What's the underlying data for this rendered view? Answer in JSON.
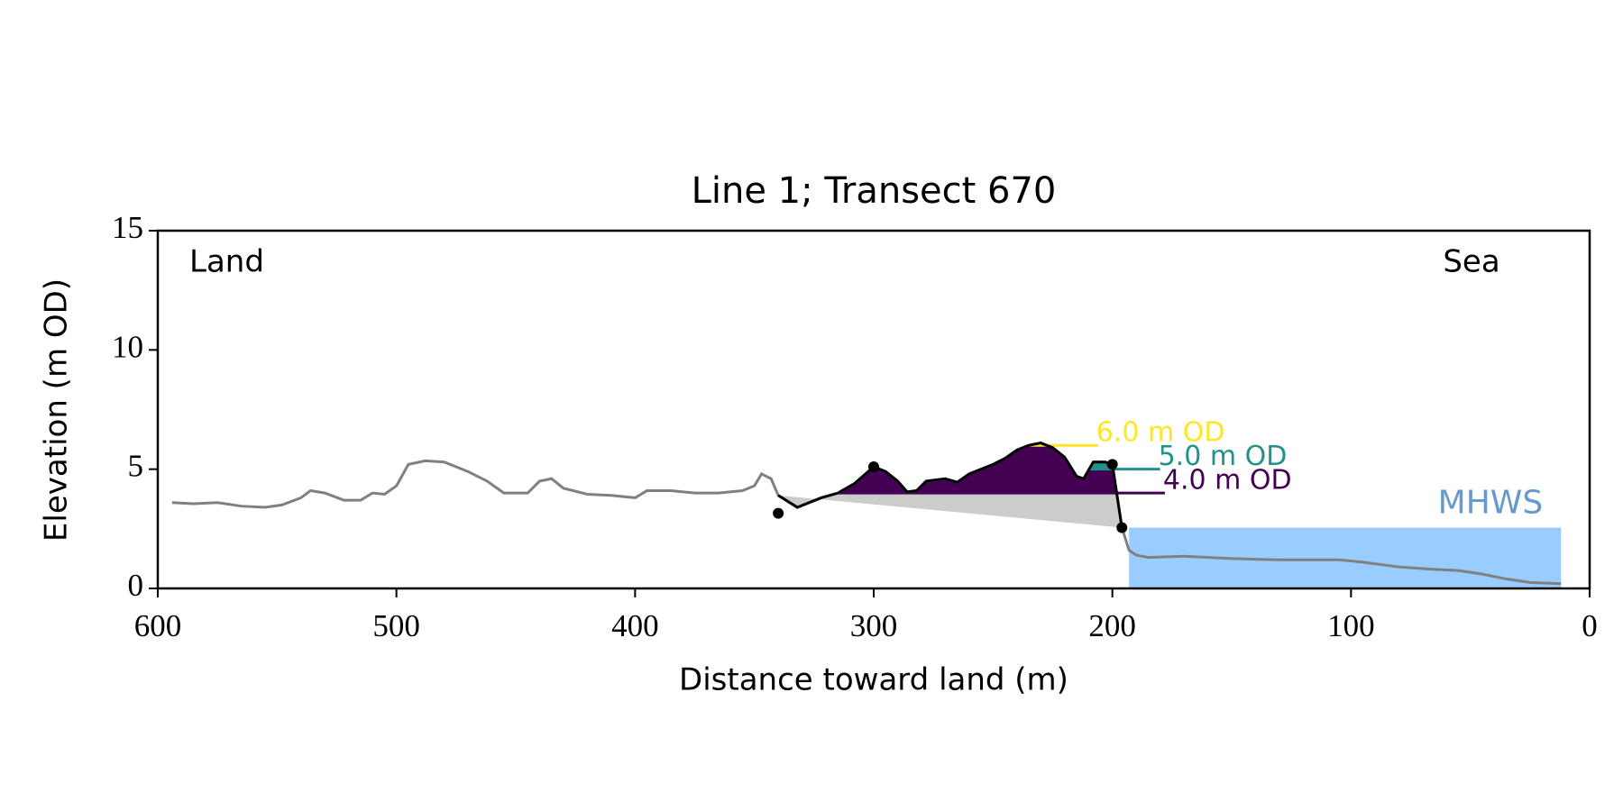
{
  "chart_data": {
    "type": "line",
    "title": "Line 1; Transect 670",
    "xlabel": "Distance toward land (m)",
    "ylabel": "Elevation (m OD)",
    "xlim": [
      600,
      0
    ],
    "ylim": [
      0,
      15
    ],
    "xticks": [
      600,
      500,
      400,
      300,
      200,
      100,
      0
    ],
    "yticks": [
      0,
      5,
      10,
      15
    ],
    "annotations": [
      "Land",
      "Sea"
    ],
    "profile": {
      "color": "#808080",
      "x": [
        594,
        585,
        575,
        565,
        555,
        548,
        540,
        536,
        530,
        522,
        515,
        510,
        505,
        500,
        495,
        488,
        480,
        470,
        462,
        455,
        445,
        440,
        435,
        430,
        420,
        410,
        400,
        395,
        385,
        375,
        365,
        355,
        350,
        347,
        343,
        340,
        332,
        322,
        315,
        308,
        300,
        295,
        290,
        286,
        282,
        278,
        270,
        265,
        260,
        250,
        245,
        240,
        235,
        230,
        225,
        220,
        215,
        212,
        208,
        203,
        200,
        196,
        193,
        190,
        185,
        170,
        150,
        130,
        120,
        105,
        95,
        80,
        65,
        55,
        45,
        35,
        25,
        12
      ],
      "values": [
        3.6,
        3.55,
        3.6,
        3.45,
        3.4,
        3.5,
        3.8,
        4.1,
        4.0,
        3.7,
        3.7,
        4.0,
        3.95,
        4.3,
        5.2,
        5.35,
        5.3,
        4.9,
        4.5,
        4.0,
        4.0,
        4.5,
        4.6,
        4.2,
        3.95,
        3.9,
        3.8,
        4.1,
        4.1,
        4.0,
        4.0,
        4.1,
        4.3,
        4.8,
        4.6,
        3.9,
        3.4,
        3.8,
        4.0,
        4.4,
        5.1,
        4.9,
        4.5,
        4.05,
        4.1,
        4.5,
        4.6,
        4.45,
        4.8,
        5.2,
        5.45,
        5.8,
        6.0,
        6.1,
        5.9,
        5.5,
        4.7,
        4.6,
        5.3,
        5.3,
        5.2,
        2.55,
        1.6,
        1.4,
        1.3,
        1.35,
        1.25,
        1.2,
        1.2,
        1.2,
        1.1,
        0.9,
        0.8,
        0.75,
        0.6,
        0.4,
        0.25,
        0.2
      ]
    },
    "points": {
      "color": "#000000",
      "x": [
        340,
        300,
        200,
        196
      ],
      "values": [
        3.15,
        5.1,
        5.2,
        2.55
      ]
    },
    "levels": [
      {
        "label": "4.0 m OD",
        "value": 4.0,
        "color": "#440154"
      },
      {
        "label": "5.0 m OD",
        "value": 5.0,
        "color": "#21918c"
      },
      {
        "label": "6.0 m OD",
        "value": 6.0,
        "color": "#fde725"
      }
    ],
    "mhws": {
      "label": "MHWS",
      "value": 2.55,
      "x": [
        193,
        12
      ],
      "color": "#99ccff",
      "label_color": "#6699cc"
    }
  }
}
